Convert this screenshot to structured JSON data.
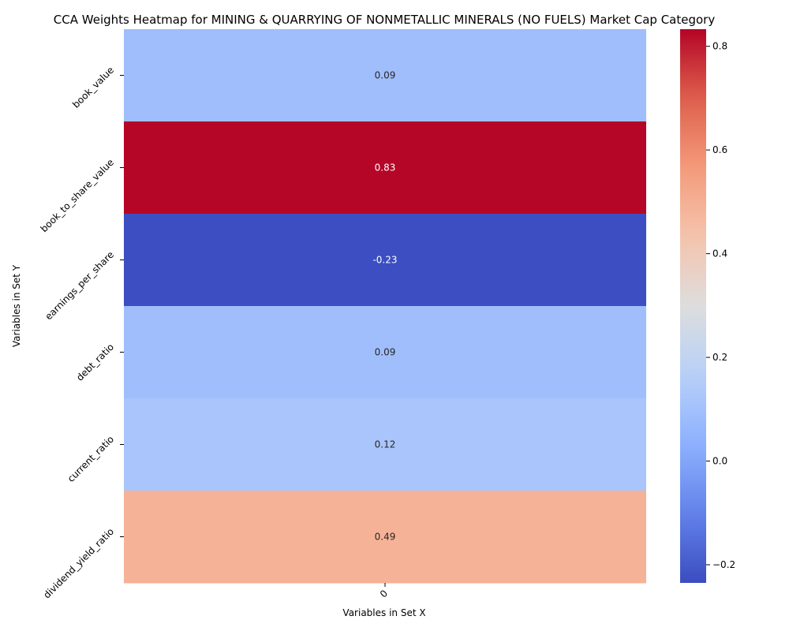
{
  "chart_data": {
    "type": "heatmap",
    "title": "CCA Weights Heatmap for MINING & QUARRYING OF NONMETALLIC MINERALS (NO FUELS) Market Cap Category",
    "xlabel": "Variables in Set X",
    "ylabel": "Variables in Set Y",
    "x_categories": [
      "0"
    ],
    "y_categories": [
      "book_value",
      "book_to_share_value",
      "earnings_per_share",
      "debt_ratio",
      "current_ratio",
      "dividend_yield_ratio"
    ],
    "values": [
      [
        0.09
      ],
      [
        0.83
      ],
      [
        -0.23
      ],
      [
        0.09
      ],
      [
        0.12
      ],
      [
        0.49
      ]
    ],
    "value_labels": [
      "0.09",
      "0.83",
      "-0.23",
      "0.09",
      "0.12",
      "0.49"
    ],
    "colormap": "coolwarm",
    "vmin": -0.235,
    "vmax": 0.833,
    "colorbar_ticks": [
      -0.2,
      0.0,
      0.2,
      0.4,
      0.6,
      0.8
    ],
    "colorbar_tick_labels": [
      "−0.2",
      "0.0",
      "0.2",
      "0.4",
      "0.6",
      "0.8"
    ]
  }
}
